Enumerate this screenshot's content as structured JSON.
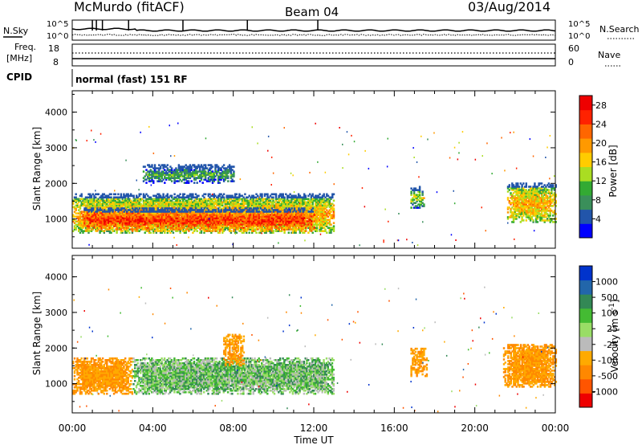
{
  "header": {
    "station": "McMurdo (fitACF)",
    "beam": "Beam 04",
    "date": "03/Aug/2014"
  },
  "status_panel": {
    "nsky_label": "N.Sky",
    "nsky_ticks": [
      "10^5",
      "10^0"
    ],
    "nsearch_label": "N.Search",
    "nsearch_ticks": [
      "10^5",
      "10^0"
    ],
    "freq_label_1": "Freq.",
    "freq_label_2": "[MHz]",
    "freq_ticks": [
      "18",
      "8"
    ],
    "nave_label": "Nave",
    "nave_ticks": [
      "60",
      "0"
    ],
    "cpid_label": "CPID",
    "cpid_value": "normal (fast) 151 RF"
  },
  "colors": {
    "power_scale": [
      "#0000ff",
      "#2255aa",
      "#3a8f5a",
      "#33aa33",
      "#aadd22",
      "#ffcc00",
      "#ff9900",
      "#ff6600",
      "#ff2200",
      "#ee0000"
    ],
    "velocity_scale": [
      "#0033cc",
      "#2266aa",
      "#338855",
      "#44bb33",
      "#99dd66",
      "#bbbbbb",
      "#ffaa00",
      "#ff8800",
      "#ff5500",
      "#ee0000"
    ]
  },
  "chart_data": [
    {
      "type": "heatmap",
      "name": "power",
      "ylabel": "Slant Range [km]",
      "ylim": [
        180,
        4600
      ],
      "yticks": [
        "4000",
        "3000",
        "2000",
        "1000"
      ],
      "colorbar_label": "Power [dB]",
      "colorbar_ticks": [
        "28",
        "24",
        "20",
        "16",
        "12",
        "8",
        "4"
      ],
      "colorbar_range": [
        0,
        30
      ],
      "xlim": [
        0,
        24
      ],
      "regions": [
        {
          "x": [
            0.0,
            13.0
          ],
          "y": [
            600,
            1700
          ],
          "value": 20
        },
        {
          "x": [
            0.5,
            12.0
          ],
          "y": [
            650,
            1300
          ],
          "value": 27
        },
        {
          "x": [
            16.8,
            17.5
          ],
          "y": [
            1300,
            1900
          ],
          "value": 14
        },
        {
          "x": [
            21.6,
            24.0
          ],
          "y": [
            900,
            2000
          ],
          "value": 20
        },
        {
          "x": [
            3.5,
            8.0
          ],
          "y": [
            2000,
            2500
          ],
          "value": 10
        }
      ]
    },
    {
      "type": "heatmap",
      "name": "velocity",
      "xlabel": "Time UT",
      "ylabel": "Slant Range [km]",
      "ylim": [
        180,
        4600
      ],
      "yticks": [
        "4000",
        "3000",
        "2000",
        "1000"
      ],
      "xticks": [
        "00:00",
        "04:00",
        "08:00",
        "12:00",
        "16:00",
        "20:00",
        "00:00"
      ],
      "colorbar_label": "Velocity [m s",
      "colorbar_ticks": [
        "1000",
        "500",
        "100",
        "25",
        "-25",
        "-100",
        "-500",
        "-1000"
      ],
      "xlim": [
        0,
        24
      ],
      "regions": [
        {
          "x": [
            0.0,
            3.0
          ],
          "y": [
            700,
            1700
          ],
          "value": -100
        },
        {
          "x": [
            3.0,
            13.0
          ],
          "y": [
            700,
            1700
          ],
          "value": 50
        },
        {
          "x": [
            16.8,
            17.6
          ],
          "y": [
            1200,
            2000
          ],
          "value": -100
        },
        {
          "x": [
            21.4,
            24.0
          ],
          "y": [
            900,
            2100
          ],
          "value": -100
        },
        {
          "x": [
            7.5,
            8.5
          ],
          "y": [
            1500,
            2400
          ],
          "value": -100
        }
      ]
    }
  ]
}
